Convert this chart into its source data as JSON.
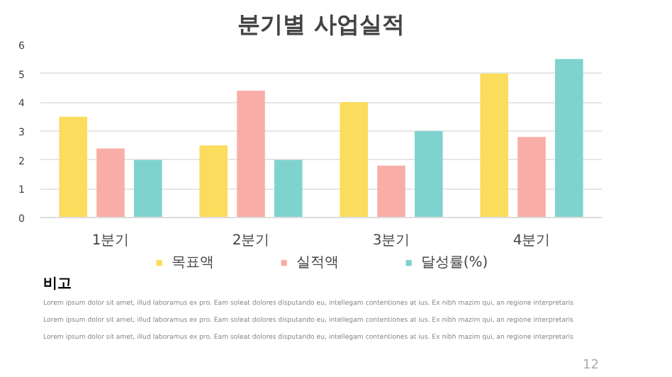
{
  "chart_data": {
    "type": "bar",
    "title": "분기별 사업실적",
    "categories": [
      "1분기",
      "2분기",
      "3분기",
      "4분기"
    ],
    "series": [
      {
        "name": "목표액",
        "color": "#fcdc5c",
        "values": [
          3.5,
          2.5,
          4,
          5
        ]
      },
      {
        "name": "실적액",
        "color": "#f8aea6",
        "values": [
          2.4,
          4.4,
          1.8,
          2.8
        ]
      },
      {
        "name": "달성률(%)",
        "color": "#7fd3cf",
        "values": [
          2,
          2,
          3,
          5.5
        ]
      }
    ],
    "ylim": [
      0,
      6
    ],
    "yticks": [
      0,
      1,
      2,
      3,
      4,
      5,
      6
    ],
    "grid": "y",
    "legend": "bottom",
    "annotations": [
      "비고",
      "Lorem ipsum dolor sit amet, illud laboramus ex pro. Eam soleat dolores disputando eu, intellegam contentiones at ius. Ex nibh mazim qui, an regione interpretaris",
      "Lorem ipsum dolor sit amet, illud laboramus ex pro. Eam soleat dolores disputando eu, intellegam contentiones at ius. Ex nibh mazim qui, an regione interpretaris",
      "Lorem ipsum dolor sit amet, illud laboramus ex pro. Eam soleat dolores disputando eu, intellegam contentiones at ius. Ex nibh mazim qui, an regione interpretaris",
      "12"
    ]
  }
}
